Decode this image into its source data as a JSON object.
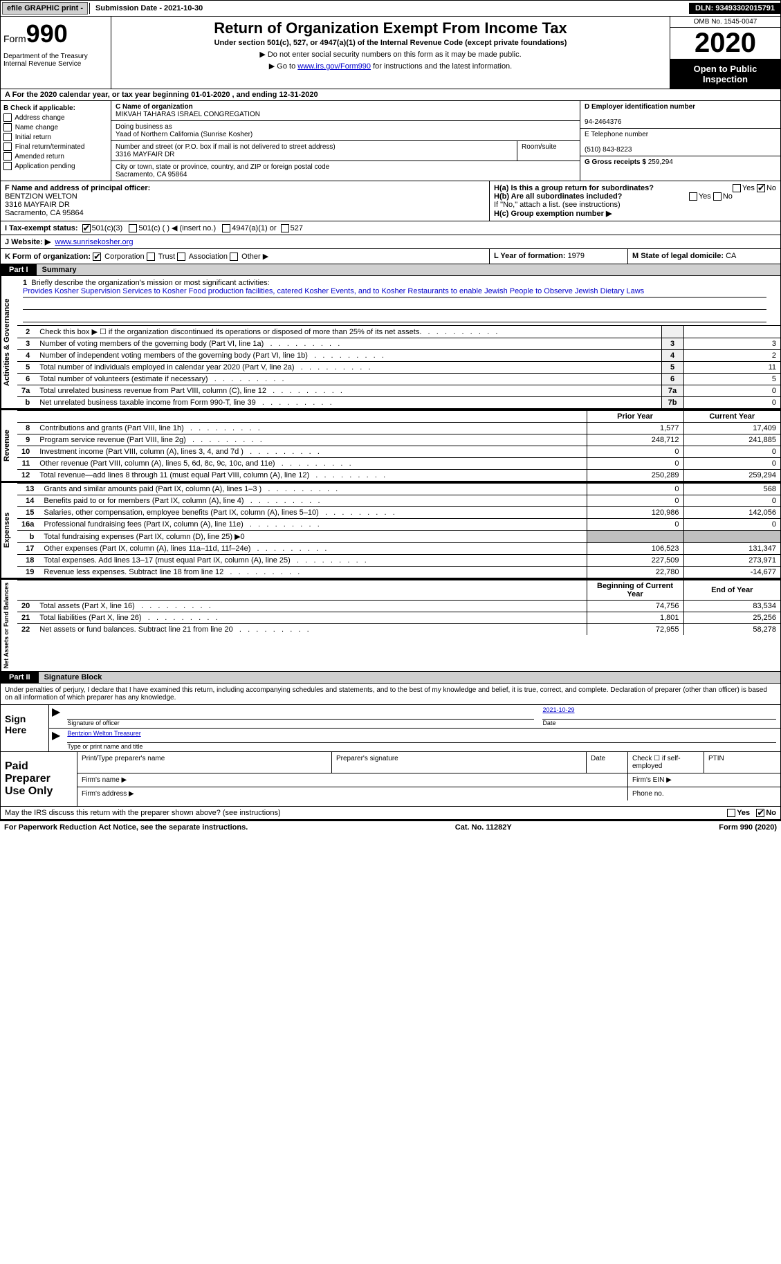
{
  "top": {
    "efile": "efile GRAPHIC print - ",
    "submission": "Submission Date - 2021-10-30",
    "dln": "DLN: 93493302015791"
  },
  "header": {
    "form_label": "Form",
    "form_num": "990",
    "dept": "Department of the Treasury\nInternal Revenue Service",
    "title": "Return of Organization Exempt From Income Tax",
    "subtitle": "Under section 501(c), 527, or 4947(a)(1) of the Internal Revenue Code (except private foundations)",
    "note1": "▶ Do not enter social security numbers on this form as it may be made public.",
    "note2_a": "▶ Go to ",
    "note2_link": "www.irs.gov/Form990",
    "note2_b": " for instructions and the latest information.",
    "omb": "OMB No. 1545-0047",
    "year": "2020",
    "opi": "Open to Public Inspection"
  },
  "period": "For the 2020 calendar year, or tax year beginning 01-01-2020   , and ending 12-31-2020",
  "b": {
    "title": "B Check if applicable:",
    "items": [
      "Address change",
      "Name change",
      "Initial return",
      "Final return/terminated",
      "Amended return",
      "Application pending"
    ]
  },
  "c": {
    "label": "C Name of organization",
    "name": "MIKVAH TAHARAS ISRAEL CONGREGATION",
    "dba_label": "Doing business as",
    "dba": "Yaad of Northern California (Sunrise Kosher)",
    "street_label": "Number and street (or P.O. box if mail is not delivered to street address)",
    "street": "3316 MAYFAIR DR",
    "room_label": "Room/suite",
    "city_label": "City or town, state or province, country, and ZIP or foreign postal code",
    "city": "Sacramento, CA  95864"
  },
  "d": {
    "label": "D Employer identification number",
    "value": "94-2464376"
  },
  "e": {
    "label": "E Telephone number",
    "value": "(510) 843-8223"
  },
  "g": {
    "label": "G Gross receipts $ ",
    "value": "259,294"
  },
  "f": {
    "label": "F  Name and address of principal officer:",
    "name": "BENTZION WELTON",
    "street": "3316 MAYFAIR DR",
    "city": "Sacramento, CA  95864"
  },
  "h": {
    "a_label": "H(a)  Is this a group return for subordinates?",
    "b_label": "H(b)  Are all subordinates included?",
    "note": "If \"No,\" attach a list. (see instructions)",
    "c_label": "H(c)  Group exemption number ▶"
  },
  "i": {
    "label": "I  Tax-exempt status:",
    "opts": [
      "501(c)(3)",
      "501(c) (  ) ◀ (insert no.)",
      "4947(a)(1) or",
      "527"
    ]
  },
  "j": {
    "label": "J  Website: ▶",
    "value": "www.sunrisekosher.org"
  },
  "k": {
    "label": "K Form of organization:",
    "opts": [
      "Corporation",
      "Trust",
      "Association",
      "Other ▶"
    ]
  },
  "l": {
    "label": "L Year of formation: ",
    "value": "1979"
  },
  "m": {
    "label": "M State of legal domicile: ",
    "value": "CA"
  },
  "part1_tab": "Part I",
  "part1_title": "Summary",
  "q1": {
    "num": "1",
    "text": "Briefly describe the organization's mission or most significant activities:",
    "mission": "Provides Kosher Supervision Services to Kosher Food production facilities, catered Kosher Events, and to Kosher Restaurants to enable Jewish People to Observe Jewish Dietary Laws"
  },
  "gov_rows": [
    {
      "n": "2",
      "d": "Check this box ▶ ☐  if the organization discontinued its operations or disposed of more than 25% of its net assets.",
      "k": "",
      "v": ""
    },
    {
      "n": "3",
      "d": "Number of voting members of the governing body (Part VI, line 1a)",
      "k": "3",
      "v": "3"
    },
    {
      "n": "4",
      "d": "Number of independent voting members of the governing body (Part VI, line 1b)",
      "k": "4",
      "v": "2"
    },
    {
      "n": "5",
      "d": "Total number of individuals employed in calendar year 2020 (Part V, line 2a)",
      "k": "5",
      "v": "11"
    },
    {
      "n": "6",
      "d": "Total number of volunteers (estimate if necessary)",
      "k": "6",
      "v": "5"
    },
    {
      "n": "7a",
      "d": "Total unrelated business revenue from Part VIII, column (C), line 12",
      "k": "7a",
      "v": "0"
    },
    {
      "n": "b",
      "d": "Net unrelated business taxable income from Form 990-T, line 39",
      "k": "7b",
      "v": "0"
    }
  ],
  "rev_header": {
    "py": "Prior Year",
    "cy": "Current Year"
  },
  "rev_rows": [
    {
      "n": "8",
      "d": "Contributions and grants (Part VIII, line 1h)",
      "py": "1,577",
      "cy": "17,409"
    },
    {
      "n": "9",
      "d": "Program service revenue (Part VIII, line 2g)",
      "py": "248,712",
      "cy": "241,885"
    },
    {
      "n": "10",
      "d": "Investment income (Part VIII, column (A), lines 3, 4, and 7d )",
      "py": "0",
      "cy": "0"
    },
    {
      "n": "11",
      "d": "Other revenue (Part VIII, column (A), lines 5, 6d, 8c, 9c, 10c, and 11e)",
      "py": "0",
      "cy": "0"
    },
    {
      "n": "12",
      "d": "Total revenue—add lines 8 through 11 (must equal Part VIII, column (A), line 12)",
      "py": "250,289",
      "cy": "259,294"
    }
  ],
  "exp_rows": [
    {
      "n": "13",
      "d": "Grants and similar amounts paid (Part IX, column (A), lines 1–3 )",
      "py": "0",
      "cy": "568"
    },
    {
      "n": "14",
      "d": "Benefits paid to or for members (Part IX, column (A), line 4)",
      "py": "0",
      "cy": "0"
    },
    {
      "n": "15",
      "d": "Salaries, other compensation, employee benefits (Part IX, column (A), lines 5–10)",
      "py": "120,986",
      "cy": "142,056"
    },
    {
      "n": "16a",
      "d": "Professional fundraising fees (Part IX, column (A), line 11e)",
      "py": "0",
      "cy": "0"
    },
    {
      "n": "b",
      "d": "Total fundraising expenses (Part IX, column (D), line 25) ▶0",
      "py": "",
      "cy": "",
      "grey": true
    },
    {
      "n": "17",
      "d": "Other expenses (Part IX, column (A), lines 11a–11d, 11f–24e)",
      "py": "106,523",
      "cy": "131,347"
    },
    {
      "n": "18",
      "d": "Total expenses. Add lines 13–17 (must equal Part IX, column (A), line 25)",
      "py": "227,509",
      "cy": "273,971"
    },
    {
      "n": "19",
      "d": "Revenue less expenses. Subtract line 18 from line 12",
      "py": "22,780",
      "cy": "-14,677"
    }
  ],
  "net_header": {
    "by": "Beginning of Current Year",
    "ey": "End of Year"
  },
  "net_rows": [
    {
      "n": "20",
      "d": "Total assets (Part X, line 16)",
      "py": "74,756",
      "cy": "83,534"
    },
    {
      "n": "21",
      "d": "Total liabilities (Part X, line 26)",
      "py": "1,801",
      "cy": "25,256"
    },
    {
      "n": "22",
      "d": "Net assets or fund balances. Subtract line 21 from line 20",
      "py": "72,955",
      "cy": "58,278"
    }
  ],
  "vlabels": {
    "gov": "Activities & Governance",
    "rev": "Revenue",
    "exp": "Expenses",
    "net": "Net Assets or Fund Balances"
  },
  "part2_tab": "Part II",
  "part2_title": "Signature Block",
  "penalty": "Under penalties of perjury, I declare that I have examined this return, including accompanying schedules and statements, and to the best of my knowledge and belief, it is true, correct, and complete. Declaration of preparer (other than officer) is based on all information of which preparer has any knowledge.",
  "sign": {
    "label": "Sign Here",
    "sig_label": "Signature of officer",
    "date": "2021-10-29",
    "date_label": "Date",
    "name": "Bentzion Welton  Treasurer",
    "name_label": "Type or print name and title"
  },
  "paid": {
    "label": "Paid Preparer Use Only",
    "h1": "Print/Type preparer's name",
    "h2": "Preparer's signature",
    "h3": "Date",
    "h4": "Check ☐ if self-employed",
    "h5": "PTIN",
    "firm_name": "Firm's name  ▶",
    "firm_ein": "Firm's EIN ▶",
    "firm_addr": "Firm's address ▶",
    "phone": "Phone no."
  },
  "discuss": {
    "text": "May the IRS discuss this return with the preparer shown above? (see instructions)",
    "yes": "Yes",
    "no": "No"
  },
  "footer": {
    "left": "For Paperwork Reduction Act Notice, see the separate instructions.",
    "mid": "Cat. No. 11282Y",
    "right": "Form 990 (2020)"
  }
}
